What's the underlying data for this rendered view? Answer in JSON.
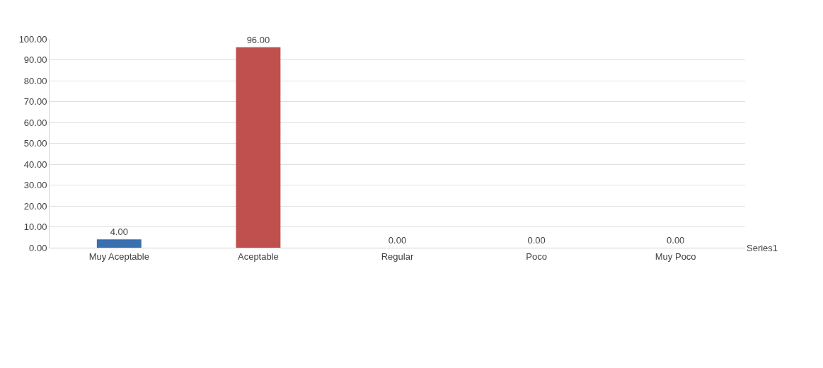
{
  "chart_data": {
    "type": "bar",
    "categories": [
      "Muy Aceptable",
      "Aceptable",
      "Regular",
      "Poco",
      "Muy Poco"
    ],
    "series": [
      {
        "name": "Series1",
        "colors": [
          "#3a6fb0",
          "#c0504d",
          "#9bbb59",
          "#8064a2",
          "#4bacc6"
        ],
        "values": [
          4,
          96,
          0,
          0,
          0
        ],
        "value_labels": [
          "4.00",
          "96.00",
          "0.00",
          "0.00",
          "0.00"
        ]
      }
    ],
    "ylim": [
      0,
      100
    ],
    "yticks": [
      {
        "value": 0,
        "label": "0.00"
      },
      {
        "value": 10,
        "label": "10.00"
      },
      {
        "value": 20,
        "label": "20.00"
      },
      {
        "value": 30,
        "label": "30.00"
      },
      {
        "value": 40,
        "label": "40.00"
      },
      {
        "value": 50,
        "label": "50.00"
      },
      {
        "value": 60,
        "label": "60.00"
      },
      {
        "value": 70,
        "label": "70.00"
      },
      {
        "value": 80,
        "label": "80.00"
      },
      {
        "value": 90,
        "label": "90.00"
      },
      {
        "value": 100,
        "label": "100.00"
      }
    ],
    "grid": "y",
    "legend": false
  }
}
